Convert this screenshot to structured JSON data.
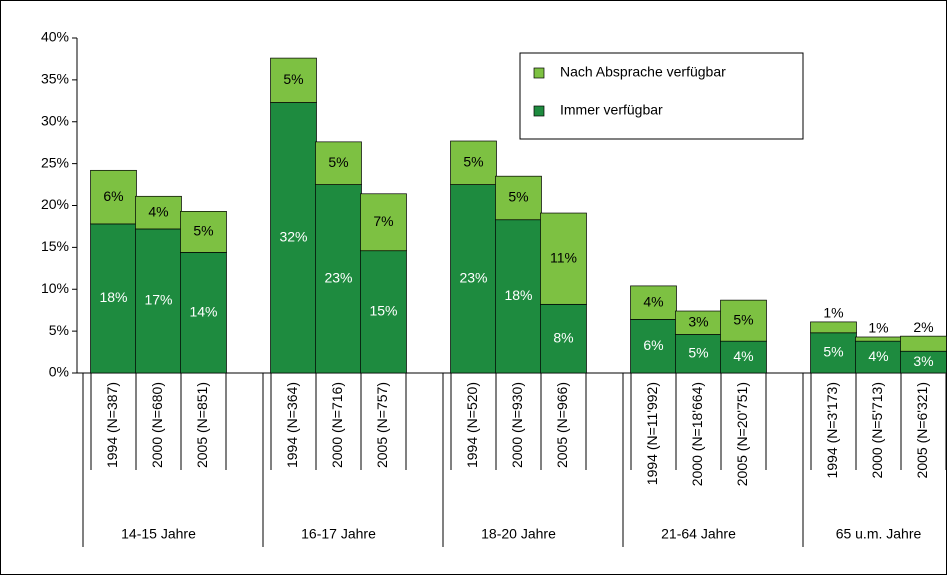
{
  "chart_data": {
    "type": "stacked_bar",
    "categories": [
      "1994 (N=387)",
      "2000 (N=680)",
      "2005 (N=851)",
      "1994 (N=364)",
      "2000 (N=716)",
      "2005 (N=757)",
      "1994 (N=520)",
      "2000 (N=930)",
      "2005 (N=966)",
      "1994 (N=11'992)",
      "2000 (N=18'664)",
      "2005 (N=20'751)",
      "1994 (N=3'173)",
      "2000 (N=5'713)",
      "2005 (N=6'321)"
    ],
    "groups": [
      "14-15 Jahre",
      "16-17 Jahre",
      "18-20 Jahre",
      "21-64 Jahre",
      "65 u.m. Jahre"
    ],
    "series": [
      {
        "name": "Immer verfügbar",
        "color": "#1e8b3f",
        "values": [
          17.8,
          17.2,
          14.4,
          32.3,
          22.5,
          14.6,
          22.5,
          18.3,
          8.2,
          6.4,
          4.6,
          3.8,
          4.8,
          3.8,
          2.6
        ],
        "value_labels": [
          "18%",
          "17%",
          "14%",
          "32%",
          "23%",
          "15%",
          "23%",
          "18%",
          "8%",
          "6%",
          "5%",
          "4%",
          "5%",
          "4%",
          "3%"
        ]
      },
      {
        "name": "Nach Absprache verfügbar",
        "color": "#7dc142",
        "values": [
          6.4,
          3.9,
          4.9,
          5.3,
          5.1,
          6.8,
          5.2,
          5.2,
          10.9,
          4.0,
          2.8,
          4.9,
          1.3,
          0.5,
          1.8
        ],
        "value_labels": [
          "6%",
          "4%",
          "5%",
          "5%",
          "5%",
          "7%",
          "5%",
          "5%",
          "11%",
          "4%",
          "3%",
          "5%",
          "1%",
          "1%",
          "2%"
        ]
      }
    ],
    "ylim": [
      0,
      40
    ],
    "yticks": [
      {
        "value": 0,
        "label": "0%"
      },
      {
        "value": 5,
        "label": "5%"
      },
      {
        "value": 10,
        "label": "10%"
      },
      {
        "value": 15,
        "label": "15%"
      },
      {
        "value": 20,
        "label": "20%"
      },
      {
        "value": 25,
        "label": "25%"
      },
      {
        "value": 30,
        "label": "30%"
      },
      {
        "value": 35,
        "label": "35%"
      },
      {
        "value": 40,
        "label": "40%"
      }
    ],
    "legend": "top-right"
  }
}
